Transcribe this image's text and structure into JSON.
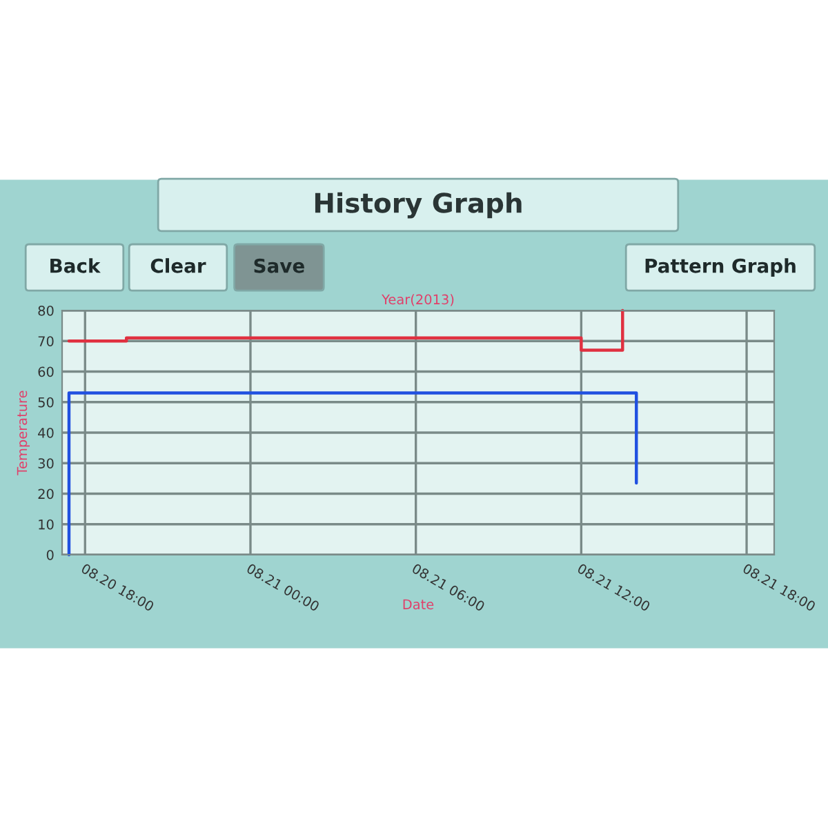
{
  "chart_data": {
    "type": "line",
    "title": "History Graph",
    "xlabel": "Date",
    "ylabel": "Temperature",
    "annotations": [
      "Year(2013)",
      "Back",
      "Clear",
      "Save",
      "Pattern Graph"
    ],
    "series": [
      {
        "color": "#2050e0",
        "x": [
          "2013-08-20T17:25",
          "2013-08-20T17:25",
          "2013-08-21T14:00",
          "2013-08-21T14:00"
        ],
        "values": [
          0,
          53,
          53,
          23.5
        ]
      },
      {
        "color": "#e03040",
        "x": [
          "2013-08-20T17:25",
          "2013-08-20T19:30",
          "2013-08-20T19:30",
          "2013-08-21T12:00",
          "2013-08-21T12:00",
          "2013-08-21T13:30",
          "2013-08-21T13:30"
        ],
        "values": [
          70,
          70,
          71,
          71,
          67,
          67,
          80
        ]
      }
    ],
    "xlim": [
      "2013-08-20T17:10",
      "2013-08-21T19:00"
    ],
    "xticks": [
      {
        "value": "2013-08-20T18:00",
        "label": "08.20 18:00"
      },
      {
        "value": "2013-08-21T00:00",
        "label": "08.21 00:00"
      },
      {
        "value": "2013-08-21T06:00",
        "label": "08.21 06:00"
      },
      {
        "value": "2013-08-21T12:00",
        "label": "08.21 12:00"
      },
      {
        "value": "2013-08-21T18:00",
        "label": "08.21 18:00"
      }
    ],
    "ylim": [
      0,
      80
    ],
    "yticks": [
      0,
      10,
      20,
      30,
      40,
      50,
      60,
      70,
      80
    ],
    "grid": true,
    "marker": "none",
    "line_style": "solid"
  }
}
